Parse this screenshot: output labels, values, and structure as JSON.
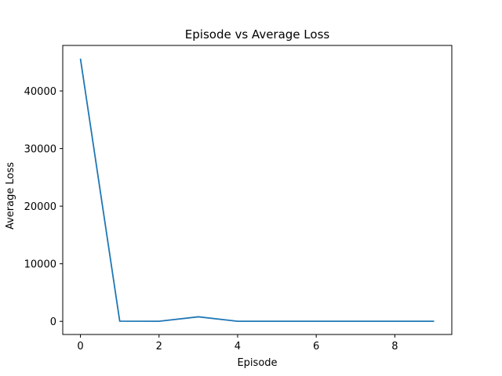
{
  "chart_data": {
    "type": "line",
    "title": "Episode vs Average Loss",
    "xlabel": "Episode",
    "ylabel": "Average Loss",
    "xlim": [
      -0.45,
      9.45
    ],
    "ylim": [
      -2280,
      47900
    ],
    "xticks": [
      0,
      2,
      4,
      6,
      8
    ],
    "yticks": [
      0,
      10000,
      20000,
      30000,
      40000
    ],
    "grid": false,
    "series": [
      {
        "color": "#1f77b4",
        "x": [
          0,
          1,
          2,
          3,
          4,
          5,
          6,
          7,
          8,
          9
        ],
        "y": [
          45600,
          30,
          10,
          790,
          20,
          10,
          10,
          10,
          10,
          10
        ]
      }
    ]
  }
}
